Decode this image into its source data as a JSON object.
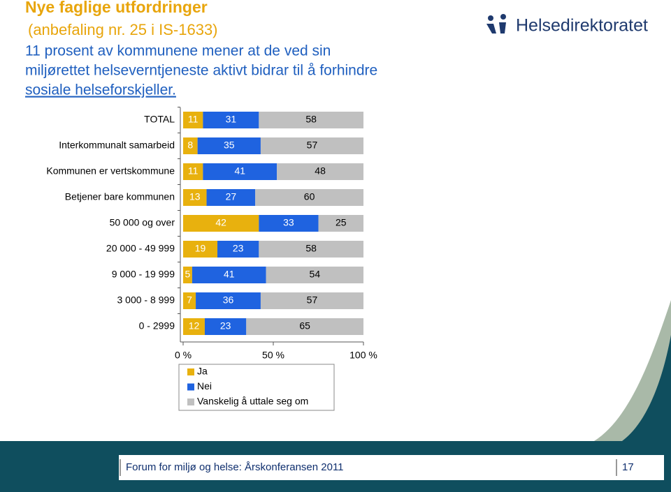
{
  "chart_data": {
    "type": "bar",
    "orientation": "horizontal",
    "stacked": true,
    "title": "Nye faglige utfordringer",
    "subtitle": "(anbefaling nr. 25 i IS-1633)",
    "annotation_lines": [
      "11 prosent av kommunene mener at de ved sin",
      "miljørettet helseverntjeneste aktivt bidrar til å forhindre",
      "sosiale helseforskjeller."
    ],
    "categories": [
      "TOTAL",
      "Interkommunalt samarbeid",
      "Kommunen er vertskommune",
      "Betjener bare kommunen",
      "50 000 og over",
      "20 000 - 49 999",
      "9 000 - 19 999",
      "3 000 - 8 999",
      "0 - 2999"
    ],
    "series": [
      {
        "name": "Ja",
        "color": "#e8b10e",
        "values": [
          11,
          8,
          11,
          13,
          42,
          19,
          5,
          7,
          12
        ]
      },
      {
        "name": "Nei",
        "color": "#1f63e0",
        "values": [
          31,
          35,
          41,
          27,
          33,
          23,
          41,
          36,
          23
        ]
      },
      {
        "name": "Vanskelig å uttale seg om",
        "color": "#c0c0c0",
        "values": [
          58,
          57,
          48,
          60,
          25,
          58,
          54,
          57,
          65
        ]
      }
    ],
    "xlim": [
      0,
      100
    ],
    "xticks": [
      {
        "value": 0,
        "label": "0 %"
      },
      {
        "value": 50,
        "label": "50 %"
      },
      {
        "value": 100,
        "label": "100 %"
      }
    ]
  },
  "slide": {
    "logo": "Helsedirektoratet",
    "footer": "Forum for miljø og helse: Årskonferansen 2011",
    "page_number": "17"
  }
}
